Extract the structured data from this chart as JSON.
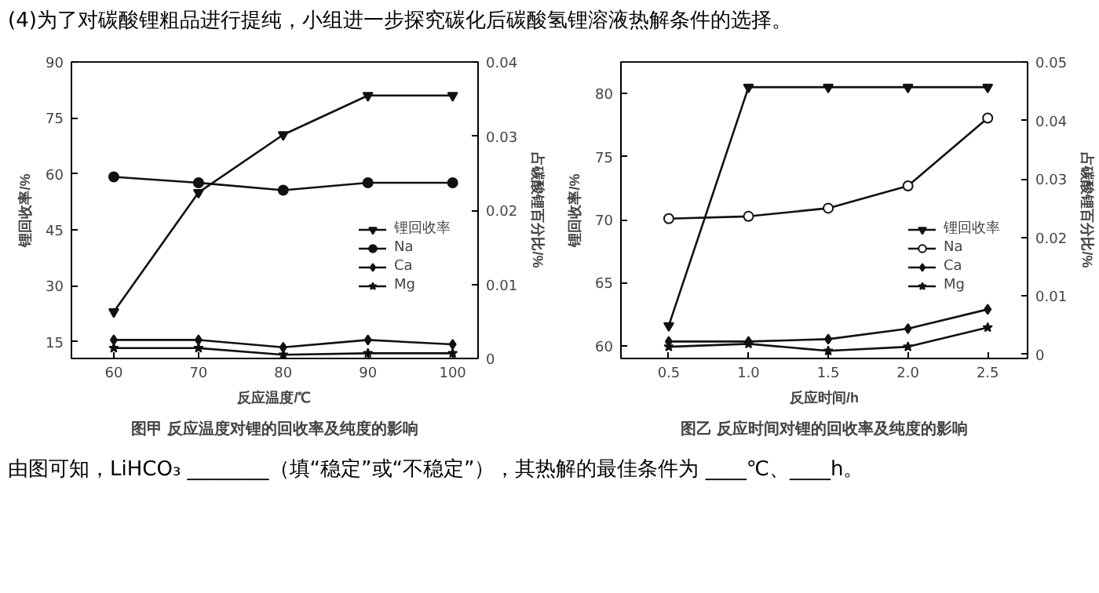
{
  "chart_data": [
    {
      "type": "line",
      "title": "图甲 反应温度对锂的回收率及纯度的影响",
      "xlabel": "反应温度/℃",
      "ylabel": "锂回收率/%",
      "y2label": "占碳酸锂百分比/%",
      "annotations": [
        "(4)为了对碳酸锂粗品进行提纯，小组进一步探究碳化后碳酸氢锂溶液热解条件的选择。"
      ],
      "x": [
        60,
        70,
        80,
        90,
        100
      ],
      "xlim": [
        55,
        103
      ],
      "xticks": [
        60,
        70,
        80,
        90,
        100
      ],
      "ylim": [
        10.5,
        90
      ],
      "yticks": [
        15,
        30,
        45,
        60,
        75,
        90
      ],
      "y2lim": [
        0,
        0.04
      ],
      "y2ticks": [
        {
          "value": 0,
          "label": "0"
        },
        0.01,
        0.02,
        0.03,
        0.04
      ],
      "grid": false,
      "legend": "right",
      "line_style": "solid",
      "series": [
        {
          "name": "锂回收率",
          "color": "#111111",
          "marker": "triangle",
          "values": [
            23,
            55,
            70.5,
            81,
            81
          ]
        },
        {
          "name": "Na",
          "color": "#111111",
          "marker": "circle",
          "axis": "y2",
          "values": [
            0.0245,
            0.0237,
            0.0227,
            0.0237,
            0.0237
          ]
        },
        {
          "name": "Ca",
          "color": "#111111",
          "marker": "diamond",
          "axis": "y2",
          "values": [
            0.0025,
            0.0025,
            0.0015,
            0.0025,
            0.0019
          ]
        },
        {
          "name": "Mg",
          "color": "#111111",
          "marker": "star",
          "axis": "y2",
          "values": [
            0.0014,
            0.0014,
            0.0005,
            0.0007,
            0.0007
          ]
        }
      ]
    },
    {
      "type": "line",
      "title": "图乙 反应时间对锂的回收率及纯度的影响",
      "xlabel": "反应时间/h",
      "ylabel": "锂回收率/%",
      "y2label": "占碳酸锂百分比/%",
      "annotations": [
        "由图可知，LiHCO₃ ________（填“稳定”或“不稳定”），其热解的最佳条件为 ____℃、____h。"
      ],
      "x": [
        0.5,
        1.0,
        1.5,
        2.0,
        2.5
      ],
      "xlim": [
        0.2,
        2.75
      ],
      "xticks": [
        0.5,
        {
          "value": 1,
          "label": "1.0"
        },
        1.5,
        {
          "value": 2,
          "label": "2.0"
        },
        2.5
      ],
      "ylim": [
        59,
        82.5
      ],
      "yticks": [
        60,
        65,
        70,
        75,
        80
      ],
      "y2lim": [
        -0.0007,
        0.05
      ],
      "y2ticks": [
        {
          "value": 0,
          "label": "0"
        },
        0.01,
        0.02,
        0.03,
        0.04,
        0.05
      ],
      "grid": false,
      "legend": "right",
      "line_style": "solid",
      "series": [
        {
          "name": "锂回收率",
          "color": "#111111",
          "marker": "triangle",
          "values": [
            61.6,
            80.5,
            80.5,
            80.5,
            80.5
          ]
        },
        {
          "name": "Na",
          "color": "#111111",
          "marker": "circle",
          "axis": "y2",
          "values": [
            0.0232,
            0.0236,
            0.025,
            0.0288,
            0.0404
          ]
        },
        {
          "name": "Ca",
          "color": "#111111",
          "marker": "diamond",
          "axis": "y2",
          "values": [
            0.0022,
            0.0022,
            0.0026,
            0.0044,
            0.0077
          ]
        },
        {
          "name": "Mg",
          "color": "#111111",
          "marker": "star",
          "axis": "y2",
          "values": [
            0.0013,
            0.0018,
            0.0006,
            0.0013,
            0.0046
          ]
        }
      ]
    }
  ]
}
